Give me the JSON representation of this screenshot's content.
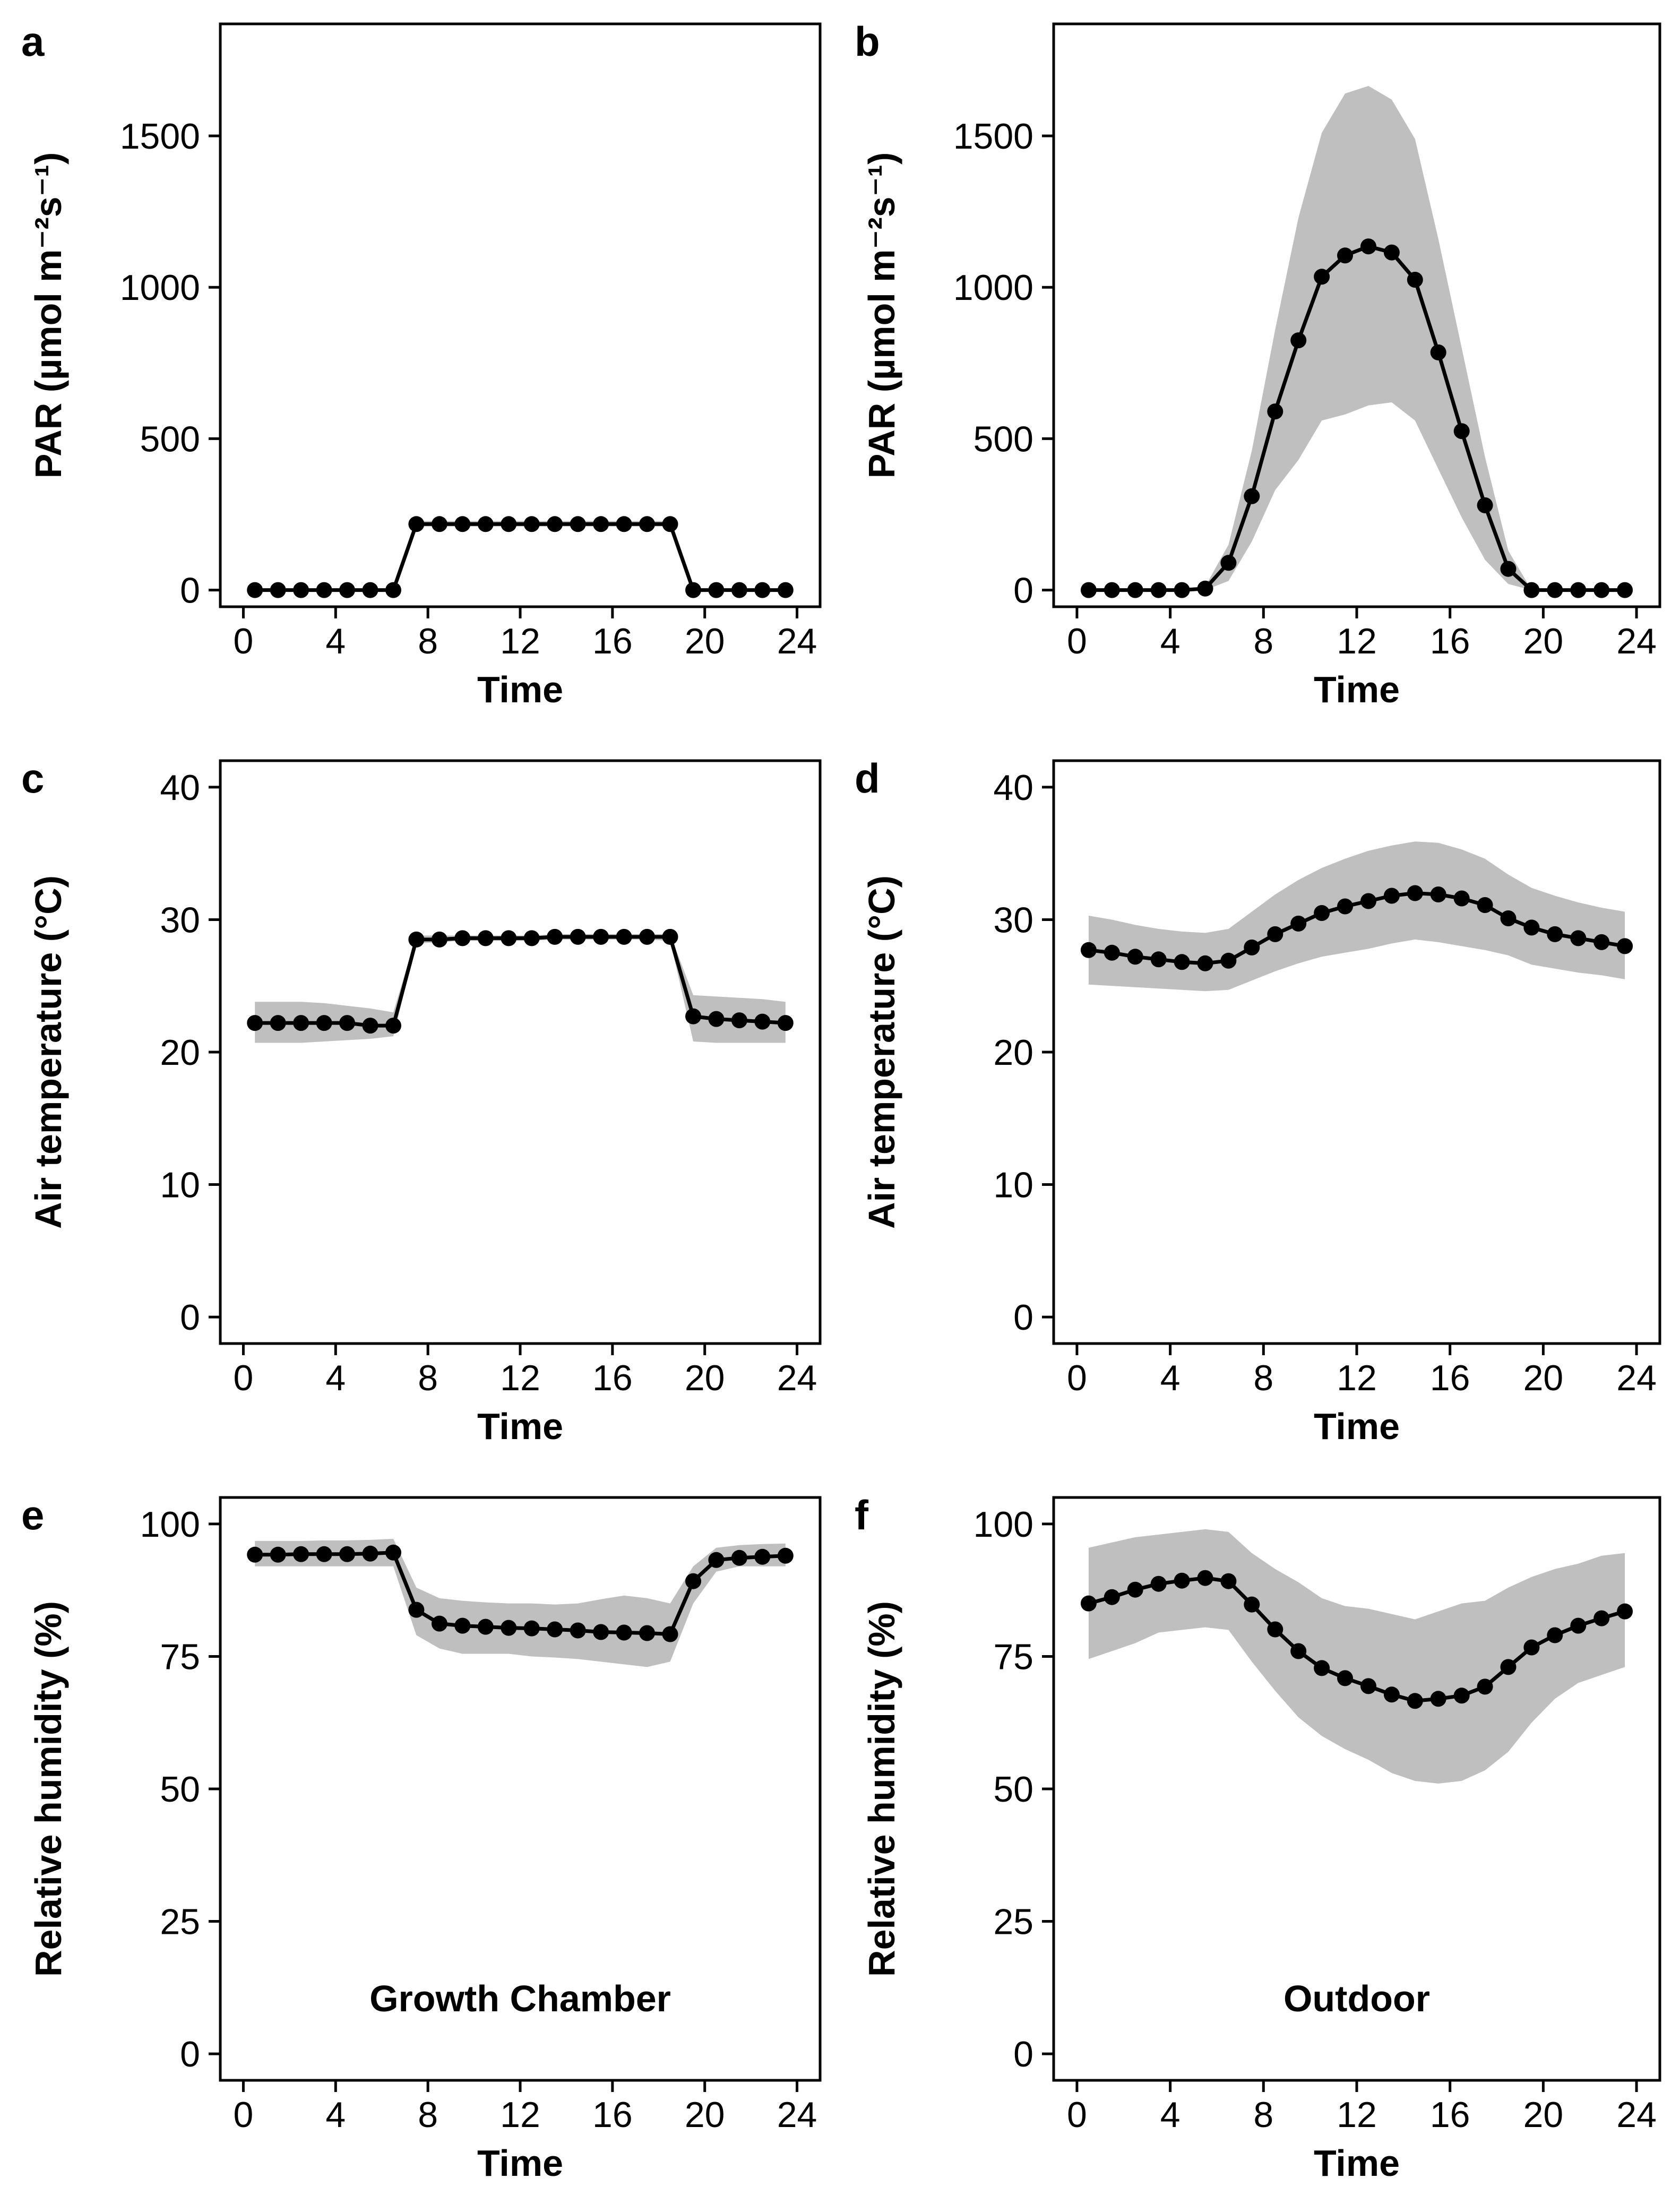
{
  "colors": {
    "band": "#bfbfbf",
    "line": "#000000",
    "frame": "#000000",
    "background": "#ffffff"
  },
  "chart_data": [
    {
      "id": "a",
      "panel_label": "a",
      "type": "line",
      "xlabel": "Time",
      "ylabel": "PAR (µmol m⁻²s⁻¹)",
      "xlim": [
        -1,
        25
      ],
      "ylim": [
        -55,
        1870
      ],
      "xticks": [
        "0",
        "4",
        "8",
        "12",
        "16",
        "20",
        "24"
      ],
      "yticks": [
        "0",
        "500",
        "1000",
        "1500"
      ],
      "annotation": "",
      "x": [
        0.5,
        1.5,
        2.5,
        3.5,
        4.5,
        5.5,
        6.5,
        7.5,
        8.5,
        9.5,
        10.5,
        11.5,
        12.5,
        13.5,
        14.5,
        15.5,
        16.5,
        17.5,
        18.5,
        19.5,
        20.5,
        21.5,
        22.5,
        23.5
      ],
      "y": [
        0,
        0,
        0,
        0,
        0,
        0,
        0,
        218,
        218,
        218,
        218,
        218,
        218,
        218,
        218,
        218,
        218,
        218,
        218,
        0,
        0,
        0,
        0,
        0
      ],
      "lower": [
        0,
        0,
        0,
        0,
        0,
        0,
        0,
        210,
        210,
        210,
        210,
        210,
        210,
        210,
        210,
        210,
        210,
        210,
        210,
        0,
        0,
        0,
        0,
        0
      ],
      "upper": [
        2,
        2,
        2,
        2,
        2,
        2,
        4,
        228,
        228,
        228,
        228,
        228,
        228,
        228,
        228,
        228,
        228,
        228,
        228,
        4,
        2,
        2,
        2,
        2
      ]
    },
    {
      "id": "b",
      "panel_label": "b",
      "type": "line",
      "xlabel": "Time",
      "ylabel": "PAR (µmol m⁻²s⁻¹)",
      "xlim": [
        -1,
        25
      ],
      "ylim": [
        -55,
        1870
      ],
      "xticks": [
        "0",
        "4",
        "8",
        "12",
        "16",
        "20",
        "24"
      ],
      "yticks": [
        "0",
        "500",
        "1000",
        "1500"
      ],
      "annotation": "",
      "x": [
        0.5,
        1.5,
        2.5,
        3.5,
        4.5,
        5.5,
        6.5,
        7.5,
        8.5,
        9.5,
        10.5,
        11.5,
        12.5,
        13.5,
        14.5,
        15.5,
        16.5,
        17.5,
        18.5,
        19.5,
        20.5,
        21.5,
        22.5,
        23.5
      ],
      "y": [
        0,
        0,
        0,
        0,
        0,
        5,
        90,
        310,
        590,
        825,
        1035,
        1105,
        1135,
        1115,
        1025,
        785,
        525,
        280,
        70,
        0,
        0,
        0,
        0,
        0
      ],
      "lower": [
        0,
        0,
        0,
        0,
        0,
        0,
        30,
        160,
        330,
        430,
        560,
        580,
        610,
        620,
        560,
        400,
        240,
        100,
        20,
        0,
        0,
        0,
        0,
        0
      ],
      "upper": [
        0,
        0,
        0,
        0,
        0,
        12,
        150,
        460,
        860,
        1230,
        1510,
        1640,
        1665,
        1620,
        1490,
        1160,
        800,
        440,
        130,
        0,
        0,
        0,
        0,
        0
      ]
    },
    {
      "id": "c",
      "panel_label": "c",
      "type": "line",
      "xlabel": "Time",
      "ylabel": "Air temperature (°C)",
      "xlim": [
        -1,
        25
      ],
      "ylim": [
        -2,
        42
      ],
      "xticks": [
        "0",
        "4",
        "8",
        "12",
        "16",
        "20",
        "24"
      ],
      "yticks": [
        "0",
        "10",
        "20",
        "30",
        "40"
      ],
      "annotation": "",
      "x": [
        0.5,
        1.5,
        2.5,
        3.5,
        4.5,
        5.5,
        6.5,
        7.5,
        8.5,
        9.5,
        10.5,
        11.5,
        12.5,
        13.5,
        14.5,
        15.5,
        16.5,
        17.5,
        18.5,
        19.5,
        20.5,
        21.5,
        22.5,
        23.5
      ],
      "y": [
        22.2,
        22.2,
        22.2,
        22.2,
        22.2,
        22.0,
        22.0,
        28.5,
        28.5,
        28.6,
        28.6,
        28.6,
        28.6,
        28.7,
        28.7,
        28.7,
        28.7,
        28.7,
        28.7,
        22.7,
        22.5,
        22.4,
        22.3,
        22.2
      ],
      "lower": [
        20.7,
        20.7,
        20.7,
        20.8,
        20.9,
        21.0,
        21.2,
        28.2,
        28.3,
        28.4,
        28.4,
        28.4,
        28.4,
        28.5,
        28.5,
        28.5,
        28.5,
        28.5,
        28.4,
        20.8,
        20.7,
        20.7,
        20.7,
        20.7
      ],
      "upper": [
        23.8,
        23.8,
        23.8,
        23.7,
        23.5,
        23.3,
        23.0,
        28.8,
        28.8,
        28.8,
        28.8,
        28.8,
        28.8,
        28.9,
        28.9,
        28.9,
        28.9,
        28.9,
        28.9,
        24.3,
        24.2,
        24.1,
        24.0,
        23.8
      ]
    },
    {
      "id": "d",
      "panel_label": "d",
      "type": "line",
      "xlabel": "Time",
      "ylabel": "Air temperature (°C)",
      "xlim": [
        -1,
        25
      ],
      "ylim": [
        -2,
        42
      ],
      "xticks": [
        "0",
        "4",
        "8",
        "12",
        "16",
        "20",
        "24"
      ],
      "yticks": [
        "0",
        "10",
        "20",
        "30",
        "40"
      ],
      "annotation": "",
      "x": [
        0.5,
        1.5,
        2.5,
        3.5,
        4.5,
        5.5,
        6.5,
        7.5,
        8.5,
        9.5,
        10.5,
        11.5,
        12.5,
        13.5,
        14.5,
        15.5,
        16.5,
        17.5,
        18.5,
        19.5,
        20.5,
        21.5,
        22.5,
        23.5
      ],
      "y": [
        27.7,
        27.5,
        27.2,
        27.0,
        26.8,
        26.7,
        26.9,
        27.9,
        28.9,
        29.7,
        30.5,
        31.0,
        31.4,
        31.8,
        32.0,
        31.9,
        31.6,
        31.1,
        30.1,
        29.4,
        28.9,
        28.6,
        28.3,
        28.0
      ],
      "lower": [
        25.1,
        25.0,
        24.9,
        24.8,
        24.7,
        24.6,
        24.7,
        25.4,
        26.1,
        26.7,
        27.2,
        27.5,
        27.8,
        28.2,
        28.5,
        28.3,
        28.0,
        27.7,
        27.3,
        26.6,
        26.3,
        26.0,
        25.8,
        25.5
      ],
      "upper": [
        30.3,
        30.0,
        29.6,
        29.3,
        29.1,
        29.0,
        29.3,
        30.6,
        31.9,
        33.0,
        33.9,
        34.6,
        35.2,
        35.6,
        35.9,
        35.8,
        35.3,
        34.6,
        33.4,
        32.4,
        31.8,
        31.3,
        30.9,
        30.6
      ]
    },
    {
      "id": "e",
      "panel_label": "e",
      "type": "line",
      "xlabel": "Time",
      "ylabel": "Relative humidity (%)",
      "xlim": [
        -1,
        25
      ],
      "ylim": [
        -5,
        105
      ],
      "xticks": [
        "0",
        "4",
        "8",
        "12",
        "16",
        "20",
        "24"
      ],
      "yticks": [
        "0",
        "25",
        "50",
        "75",
        "100"
      ],
      "annotation": "Growth Chamber",
      "x": [
        0.5,
        1.5,
        2.5,
        3.5,
        4.5,
        5.5,
        6.5,
        7.5,
        8.5,
        9.5,
        10.5,
        11.5,
        12.5,
        13.5,
        14.5,
        15.5,
        16.5,
        17.5,
        18.5,
        19.5,
        20.5,
        21.5,
        22.5,
        23.5
      ],
      "y": [
        94.2,
        94.2,
        94.3,
        94.3,
        94.3,
        94.4,
        94.6,
        83.8,
        81.2,
        80.8,
        80.6,
        80.4,
        80.3,
        80.1,
        79.9,
        79.6,
        79.5,
        79.4,
        79.2,
        89.2,
        93.2,
        93.6,
        93.8,
        94.0
      ],
      "lower": [
        92.0,
        92.0,
        92.0,
        92.0,
        92.0,
        92.0,
        92.0,
        79.0,
        76.5,
        75.5,
        75.5,
        75.5,
        75.0,
        74.8,
        74.5,
        74.0,
        73.5,
        73.0,
        74.0,
        85.0,
        91.0,
        92.0,
        92.0,
        92.0
      ],
      "upper": [
        96.8,
        96.8,
        96.8,
        96.9,
        96.9,
        97.0,
        97.2,
        88.0,
        86.0,
        85.5,
        85.2,
        85.0,
        85.0,
        84.8,
        85.0,
        85.8,
        86.5,
        86.0,
        85.0,
        92.0,
        95.5,
        96.0,
        96.2,
        96.3
      ]
    },
    {
      "id": "f",
      "panel_label": "f",
      "type": "line",
      "xlabel": "Time",
      "ylabel": "Relative humidity (%)",
      "xlim": [
        -1,
        25
      ],
      "ylim": [
        -5,
        105
      ],
      "xticks": [
        "0",
        "4",
        "8",
        "12",
        "16",
        "20",
        "24"
      ],
      "yticks": [
        "0",
        "25",
        "50",
        "75",
        "100"
      ],
      "annotation": "Outdoor",
      "x": [
        0.5,
        1.5,
        2.5,
        3.5,
        4.5,
        5.5,
        6.5,
        7.5,
        8.5,
        9.5,
        10.5,
        11.5,
        12.5,
        13.5,
        14.5,
        15.5,
        16.5,
        17.5,
        18.5,
        19.5,
        20.5,
        21.5,
        22.5,
        23.5
      ],
      "y": [
        85.0,
        86.2,
        87.6,
        88.7,
        89.3,
        89.8,
        89.2,
        84.8,
        80.1,
        76.0,
        72.8,
        70.9,
        69.4,
        67.8,
        66.6,
        67.0,
        67.6,
        69.3,
        73.0,
        76.7,
        79.0,
        80.8,
        82.2,
        83.5
      ],
      "lower": [
        74.5,
        76.0,
        77.5,
        79.5,
        80.0,
        80.5,
        80.0,
        74.0,
        68.5,
        63.5,
        60.0,
        57.5,
        55.5,
        53.0,
        51.5,
        51.0,
        51.5,
        53.5,
        57.0,
        62.5,
        67.0,
        70.0,
        71.5,
        73.0
      ],
      "upper": [
        95.5,
        96.5,
        97.5,
        98.0,
        98.5,
        99.0,
        98.5,
        94.5,
        91.5,
        89.0,
        86.0,
        84.5,
        84.0,
        83.0,
        82.0,
        83.5,
        85.0,
        85.5,
        88.0,
        90.0,
        91.5,
        92.5,
        94.0,
        94.5
      ]
    }
  ]
}
